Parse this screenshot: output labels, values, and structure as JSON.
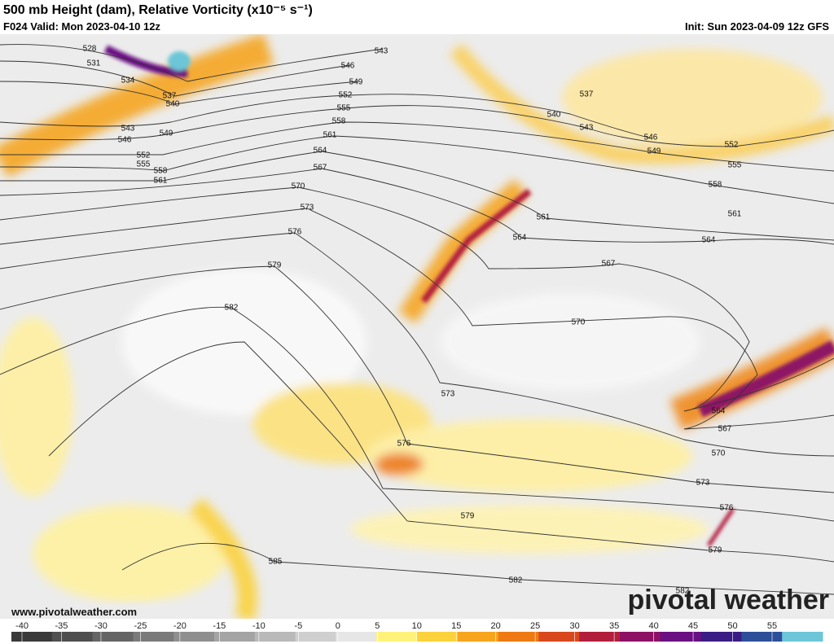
{
  "header": {
    "title": "500 mb Height (dam), Relative Vorticity (x10⁻⁵ s⁻¹)",
    "valid": "F024 Valid: Mon 2023-04-10 12z",
    "init": "Init: Sun 2023-04-09 12z GFS"
  },
  "map": {
    "contour_labels": [
      528,
      531,
      534,
      537,
      540,
      543,
      546,
      549,
      552,
      555,
      558,
      561,
      543,
      546,
      549,
      552,
      555,
      558,
      561,
      564,
      567,
      570,
      573,
      576,
      579,
      582,
      537,
      540,
      543,
      546,
      549,
      552,
      555,
      558,
      561,
      564,
      567,
      561,
      564,
      570,
      573,
      576,
      579,
      582,
      585,
      564,
      567,
      570,
      573,
      576,
      579,
      582
    ]
  },
  "footer": {
    "url": "www.pivotalweather.com",
    "logo": "pivotal weather"
  },
  "colorbar": {
    "ticks": [
      -40,
      -35,
      -30,
      -25,
      -20,
      -15,
      -10,
      -5,
      0,
      5,
      10,
      15,
      20,
      25,
      30,
      35,
      40,
      45,
      50,
      55
    ],
    "colors": [
      "#3a3a3a",
      "#4f4f4f",
      "#656565",
      "#7a7a7a",
      "#8f8f8f",
      "#a4a4a4",
      "#b9b9b9",
      "#cfcfcf",
      "#e6e6e6",
      "#fff27a",
      "#fbd23c",
      "#f7a51e",
      "#ef7a14",
      "#d9481c",
      "#b21f3c",
      "#8d1265",
      "#6a1083",
      "#3b1c84",
      "#2d4f9a",
      "#6cc6d8"
    ]
  }
}
